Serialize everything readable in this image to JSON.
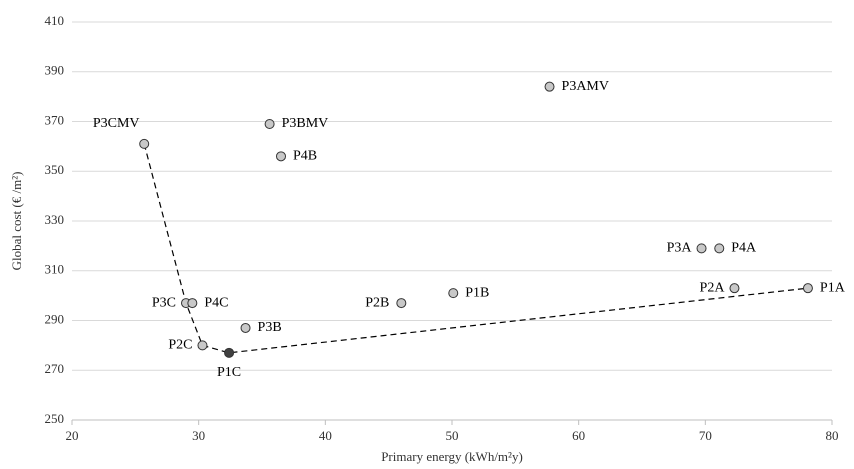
{
  "chart_data": {
    "type": "scatter",
    "xlabel": "Primary energy (kWh/m²y)",
    "ylabel": "Global cost (€ /m²)",
    "xlim": [
      20,
      80
    ],
    "xticks": [
      20,
      30,
      40,
      50,
      60,
      70,
      80
    ],
    "ylim": [
      250,
      410
    ],
    "yticks": [
      250,
      270,
      290,
      310,
      330,
      350,
      370,
      390,
      410
    ],
    "grid": true,
    "points": [
      {
        "label": "P3CMV",
        "x": 25.7,
        "y": 361,
        "color": "#c8c8c8"
      },
      {
        "label": "P3BMV",
        "x": 35.6,
        "y": 369,
        "color": "#c8c8c8"
      },
      {
        "label": "P4B",
        "x": 36.5,
        "y": 356,
        "color": "#c8c8c8"
      },
      {
        "label": "P3AMV",
        "x": 57.7,
        "y": 384,
        "color": "#c8c8c8"
      },
      {
        "label": "P3A",
        "x": 69.7,
        "y": 319,
        "color": "#c8c8c8"
      },
      {
        "label": "P4A",
        "x": 71.1,
        "y": 319,
        "color": "#c8c8c8"
      },
      {
        "label": "P2A",
        "x": 72.3,
        "y": 303,
        "color": "#c8c8c8"
      },
      {
        "label": "P1A",
        "x": 78.1,
        "y": 303,
        "color": "#c8c8c8"
      },
      {
        "label": "P2B",
        "x": 46.0,
        "y": 297,
        "color": "#c8c8c8"
      },
      {
        "label": "P1B",
        "x": 50.1,
        "y": 301,
        "color": "#c8c8c8"
      },
      {
        "label": "P3C",
        "x": 29.0,
        "y": 297,
        "color": "#c8c8c8"
      },
      {
        "label": "P4C",
        "x": 29.5,
        "y": 297,
        "color": "#c8c8c8"
      },
      {
        "label": "P3B",
        "x": 33.7,
        "y": 287,
        "color": "#c8c8c8"
      },
      {
        "label": "P2C",
        "x": 30.3,
        "y": 280,
        "color": "#c8c8c8"
      },
      {
        "label": "P1C",
        "x": 32.4,
        "y": 277,
        "color": "#404040"
      }
    ],
    "front": {
      "x": [
        25.7,
        29.0,
        30.3,
        32.4,
        78.1
      ],
      "y": [
        361,
        297,
        280,
        277,
        303
      ],
      "color": "#000000",
      "dashed": true
    }
  }
}
